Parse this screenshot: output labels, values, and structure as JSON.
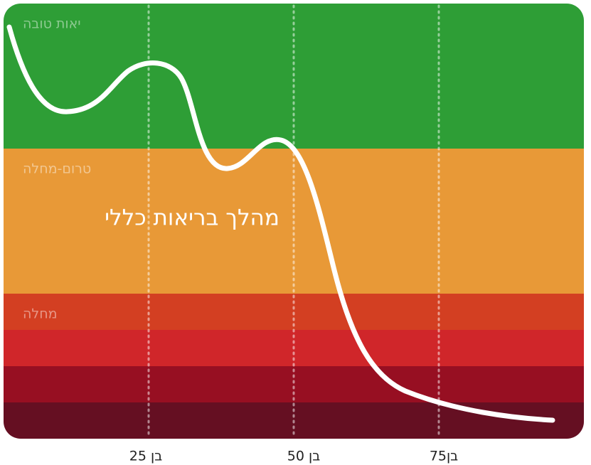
{
  "title": "מהלך בריאות כללי",
  "zones": [
    {
      "label": "יאות טובה"
    },
    {
      "label": "טרום-מחלה"
    },
    {
      "label": "מחלה"
    }
  ],
  "age_labels": [
    "בן 25",
    "בן 50",
    "בן75"
  ]
}
